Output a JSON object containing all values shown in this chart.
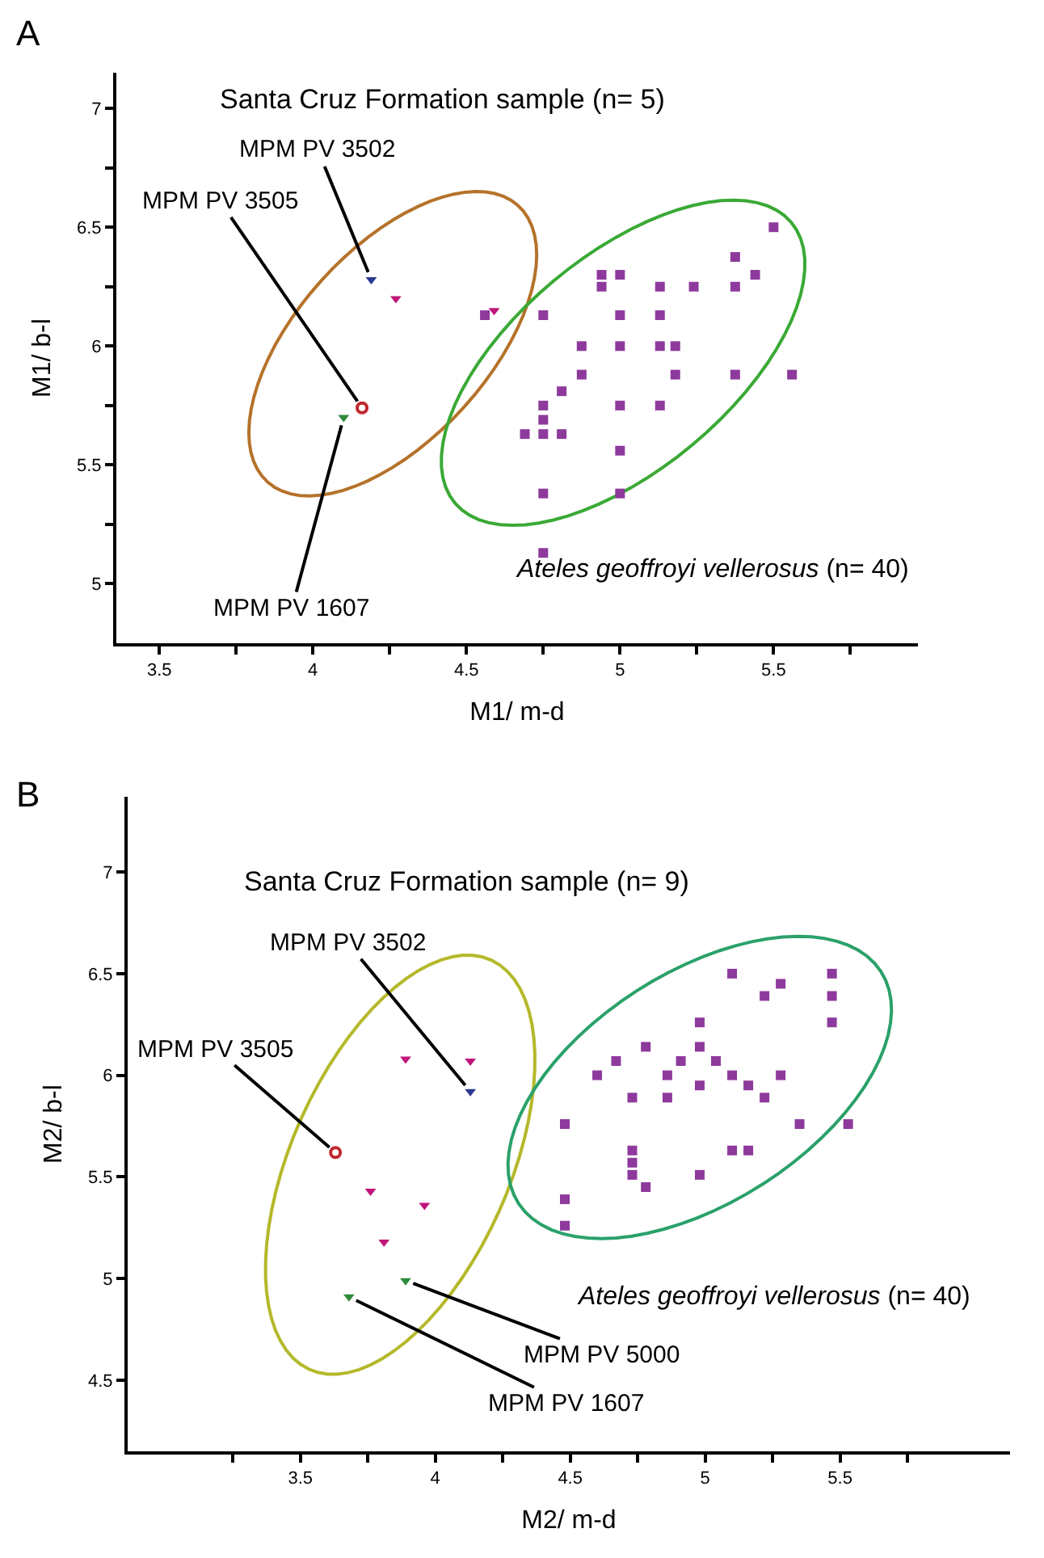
{
  "chart_data": [
    {
      "type": "scatter",
      "xlabel": "M1/ m-d",
      "ylabel": "M1/ b-l",
      "xlim": [
        3.36,
        5.97
      ],
      "ylim": [
        4.75,
        7.15
      ],
      "xticks": [
        3.5,
        {
          "value": 3.75,
          "label": null
        },
        4,
        {
          "value": 4.25,
          "label": null
        },
        4.5,
        {
          "value": 4.75,
          "label": null
        },
        5,
        {
          "value": 5.25,
          "label": null
        },
        5.5,
        {
          "value": 5.75,
          "label": null
        }
      ],
      "yticks": [
        5,
        {
          "value": 5.25,
          "label": null
        },
        5.5,
        {
          "value": 5.75,
          "label": null
        },
        6,
        {
          "value": 6.25,
          "label": null
        },
        6.5,
        {
          "value": 6.75,
          "label": null
        },
        7
      ],
      "grid": false,
      "series": [
        {
          "type": "scatter",
          "marker": "square",
          "color": "#8e3a9d",
          "x": [
            5.5,
            5.375,
            5.44,
            5.375,
            4.94,
            5.0,
            4.94,
            5.13,
            5.24,
            4.56,
            4.75,
            5.0,
            5.13,
            4.875,
            5.0,
            5.13,
            5.18,
            4.875,
            5.18,
            5.375,
            5.56,
            4.81,
            4.75,
            5.0,
            5.13,
            4.75,
            4.69,
            4.75,
            4.81,
            5.0,
            4.75,
            5.0,
            4.75
          ],
          "values": [
            6.5,
            6.375,
            6.3,
            6.25,
            6.3,
            6.3,
            6.25,
            6.25,
            6.25,
            6.13,
            6.13,
            6.13,
            6.13,
            6.0,
            6.0,
            6.0,
            6.0,
            5.88,
            5.88,
            5.88,
            5.88,
            5.81,
            5.75,
            5.75,
            5.75,
            5.69,
            5.63,
            5.63,
            5.63,
            5.56,
            5.38,
            5.38,
            5.13
          ]
        },
        {
          "type": "scatter",
          "marker": "triangle",
          "colors": [
            "#2b3990",
            "#c0157a",
            "#c0157a",
            "#2e8b3a"
          ],
          "x": [
            4.19,
            4.27,
            4.59,
            4.1
          ],
          "values": [
            6.28,
            6.2,
            6.15,
            5.7
          ]
        },
        {
          "type": "scatter",
          "marker": "circle",
          "color": "#c1272d",
          "x": [
            4.16
          ],
          "values": [
            5.74
          ]
        }
      ],
      "annotations": [
        "A",
        "Santa Cruz Formation sample (n= 5)",
        {
          "text": "MPM PV 3502",
          "x": 4.19,
          "y": 6.28
        },
        {
          "text": "MPM PV 3505",
          "x": 4.16,
          "y": 5.74
        },
        {
          "text": "MPM PV 1607",
          "x": 4.1,
          "y": 5.7
        },
        "Ateles geoffroyi vellerosus (n= 40)"
      ]
    },
    {
      "type": "scatter",
      "xlabel": "M2/ m-d",
      "ylabel": "M2/ b-l",
      "xlim": [
        2.86,
        6.13
      ],
      "ylim": [
        4.15,
        7.37
      ],
      "xticks": [
        {
          "value": 3.25,
          "label": null
        },
        3.5,
        {
          "value": 3.75,
          "label": null
        },
        4,
        {
          "value": 4.25,
          "label": null
        },
        4.5,
        {
          "value": 4.75,
          "label": null
        },
        5,
        {
          "value": 5.25,
          "label": null
        },
        5.5,
        {
          "value": 5.75,
          "label": null
        }
      ],
      "yticks": [
        4.5,
        5,
        5.5,
        6,
        6.5,
        7
      ],
      "grid": false,
      "series": [
        {
          "type": "scatter",
          "marker": "square",
          "color": "#8e3a9d",
          "x": [
            5.1,
            5.28,
            5.47,
            5.22,
            5.47,
            4.98,
            5.47,
            4.78,
            4.67,
            4.91,
            4.98,
            5.04,
            4.6,
            4.86,
            5.1,
            5.28,
            5.16,
            4.98,
            4.73,
            4.86,
            5.22,
            4.48,
            5.35,
            5.53,
            4.73,
            5.1,
            5.16,
            4.73,
            4.73,
            4.98,
            4.78,
            4.48,
            4.48
          ],
          "values": [
            6.5,
            6.45,
            6.5,
            6.39,
            6.39,
            6.26,
            6.26,
            6.14,
            6.07,
            6.07,
            6.14,
            6.07,
            6.0,
            6.0,
            6.0,
            6.0,
            5.95,
            5.95,
            5.89,
            5.89,
            5.89,
            5.76,
            5.76,
            5.76,
            5.63,
            5.63,
            5.63,
            5.57,
            5.51,
            5.51,
            5.45,
            5.39,
            5.26
          ]
        },
        {
          "type": "scatter",
          "marker": "triangle",
          "colors": [
            "#c0157a",
            "#c0157a",
            "#2b3990",
            "#c0157a",
            "#c0157a",
            "#c0157a",
            "#2e8b3a",
            "#2e8b3a"
          ],
          "x": [
            3.89,
            4.13,
            4.13,
            3.76,
            3.96,
            3.81,
            3.89,
            3.68
          ],
          "values": [
            6.08,
            6.07,
            5.92,
            5.43,
            5.36,
            5.18,
            4.99,
            4.91
          ]
        },
        {
          "type": "scatter",
          "marker": "circle",
          "color": "#c1272d",
          "x": [
            3.63
          ],
          "values": [
            5.62
          ]
        }
      ],
      "annotations": [
        "B",
        "Santa Cruz Formation sample (n= 9)",
        {
          "text": "MPM PV 3502",
          "x": 4.13,
          "y": 5.92
        },
        {
          "text": "MPM PV 3505",
          "x": 3.63,
          "y": 5.62
        },
        {
          "text": "MPM PV 5000",
          "x": 3.89,
          "y": 4.99
        },
        {
          "text": "MPM PV 1607",
          "x": 3.68,
          "y": 4.91
        },
        "Ateles geoffroyi vellerosus (n= 40)"
      ]
    }
  ]
}
